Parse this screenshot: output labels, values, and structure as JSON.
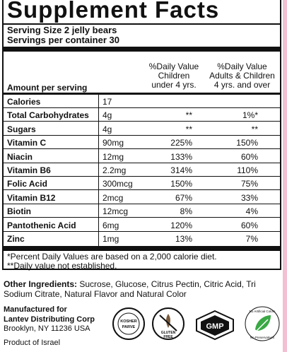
{
  "title": "Supplement Facts",
  "serving_size": "Serving Size 2 jelly bears",
  "servings_per_container": "Servings per container 30",
  "columns": {
    "amount": "Amount per serving",
    "children": "%Daily Value\nChildren\nunder 4 yrs.",
    "adults": "%Daily Value\nAdults & Children\n4 yrs. and over"
  },
  "rows": [
    {
      "name": "Calories",
      "amount": "17",
      "children": "",
      "adults": ""
    },
    {
      "name": "Total Carbohydrates",
      "amount": "4g",
      "children": "**",
      "adults": "1%*"
    },
    {
      "name": "Sugars",
      "amount": "4g",
      "children": "**",
      "adults": "**"
    },
    {
      "name": "Vitamin C",
      "amount": "90mg",
      "children": "225%",
      "adults": "150%"
    },
    {
      "name": "Niacin",
      "amount": "12mg",
      "children": "133%",
      "adults": "60%"
    },
    {
      "name": "Vitamin B6",
      "amount": "2.2mg",
      "children": "314%",
      "adults": "110%"
    },
    {
      "name": "Folic Acid",
      "amount": "300mcg",
      "children": "150%",
      "adults": "75%"
    },
    {
      "name": "Vitamin B12",
      "amount": "2mcg",
      "children": "67%",
      "adults": "33%"
    },
    {
      "name": "Biotin",
      "amount": "12mcg",
      "children": "8%",
      "adults": "4%"
    },
    {
      "name": "Pantothenic Acid",
      "amount": "6mg",
      "children": "120%",
      "adults": "60%"
    },
    {
      "name": "Zinc",
      "amount": "1mg",
      "children": "13%",
      "adults": "7%"
    }
  ],
  "footnotes": [
    "*Percent Daily Values are based on a 2,000 calorie diet.",
    "**Daily value not established."
  ],
  "ingredients": {
    "label": "Other Ingredients:",
    "text": " Sucrose, Glucose, Citrus Pectin, Citric Acid, Tri Sodium Citrate, Natural Flavor and Natural Color"
  },
  "manufacturer": {
    "line1": "Manufactured for",
    "line2": "Lantev Distributing Corp",
    "line3": "Brooklyn, NY 11236 USA",
    "line4": "Product of Israel"
  },
  "badges": {
    "kosher": "KOSHER PARVE",
    "gluten_free": "GLUTEN FREE",
    "gmp": "GMP",
    "natural": "No Artificial Colors · No Preservatives"
  },
  "colors": {
    "ink": "#111111",
    "accent_pink": "#f3bfd2",
    "natural_green": "#3aa845"
  }
}
